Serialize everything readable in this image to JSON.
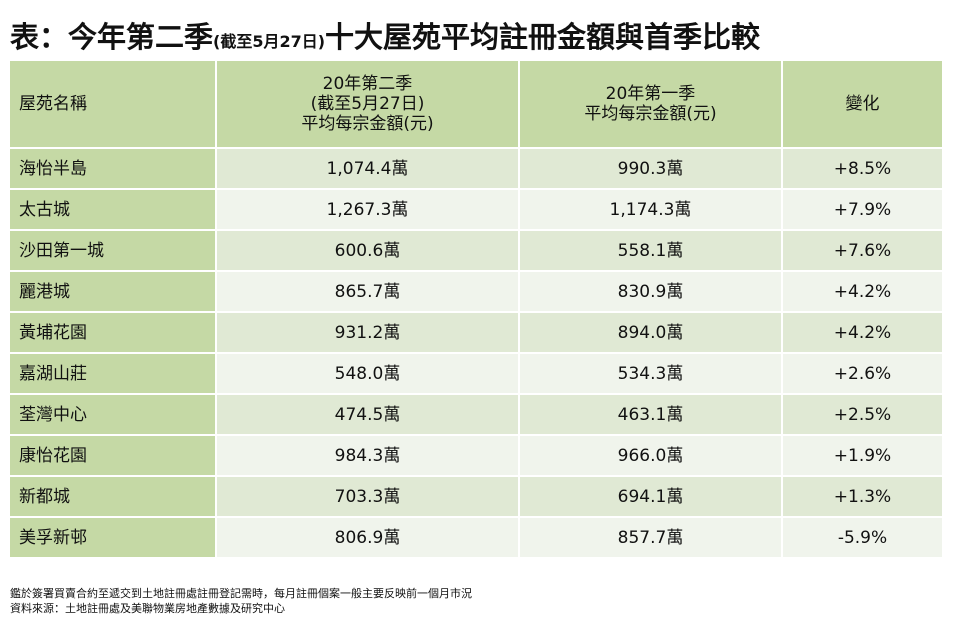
{
  "title": {
    "main": "表：今年第二季",
    "sub": "(截至5月27日)",
    "rest": "十大屋苑平均註冊金額與首季比較"
  },
  "table": {
    "headers": {
      "estate": "屋苑名稱",
      "q2": [
        "20年第二季",
        "(截至5月27日)",
        "平均每宗金額(元)"
      ],
      "q1": [
        "20年第一季",
        "平均每宗金額(元)"
      ],
      "change": "變化"
    },
    "rows": [
      {
        "estate": "海怡半島",
        "q2": "1,074.4萬",
        "q1": "990.3萬",
        "change": "+8.5%"
      },
      {
        "estate": "太古城",
        "q2": "1,267.3萬",
        "q1": "1,174.3萬",
        "change": "+7.9%"
      },
      {
        "estate": "沙田第一城",
        "q2": "600.6萬",
        "q1": "558.1萬",
        "change": "+7.6%"
      },
      {
        "estate": "麗港城",
        "q2": "865.7萬",
        "q1": "830.9萬",
        "change": "+4.2%"
      },
      {
        "estate": "黃埔花園",
        "q2": "931.2萬",
        "q1": "894.0萬",
        "change": "+4.2%"
      },
      {
        "estate": "嘉湖山莊",
        "q2": "548.0萬",
        "q1": "534.3萬",
        "change": "+2.6%"
      },
      {
        "estate": "荃灣中心",
        "q2": "474.5萬",
        "q1": "463.1萬",
        "change": "+2.5%"
      },
      {
        "estate": "康怡花園",
        "q2": "984.3萬",
        "q1": "966.0萬",
        "change": "+1.9%"
      },
      {
        "estate": "新都城",
        "q2": "703.3萬",
        "q1": "694.1萬",
        "change": "+1.3%"
      },
      {
        "estate": "美孚新邨",
        "q2": "806.9萬",
        "q1": "857.7萬",
        "change": "-5.9%"
      }
    ]
  },
  "notes": {
    "line1": "鑑於簽署買賣合約至遞交到土地註冊處註冊登記需時，每月註冊個案一般主要反映前一個月市況",
    "line2": "資料來源：土地註冊處及美聯物業房地產數據及研究中心"
  },
  "colors": {
    "header_bg": "#c5d9a5",
    "row_odd_bg": "#e0e9d4",
    "row_even_bg": "#f0f4ec"
  }
}
